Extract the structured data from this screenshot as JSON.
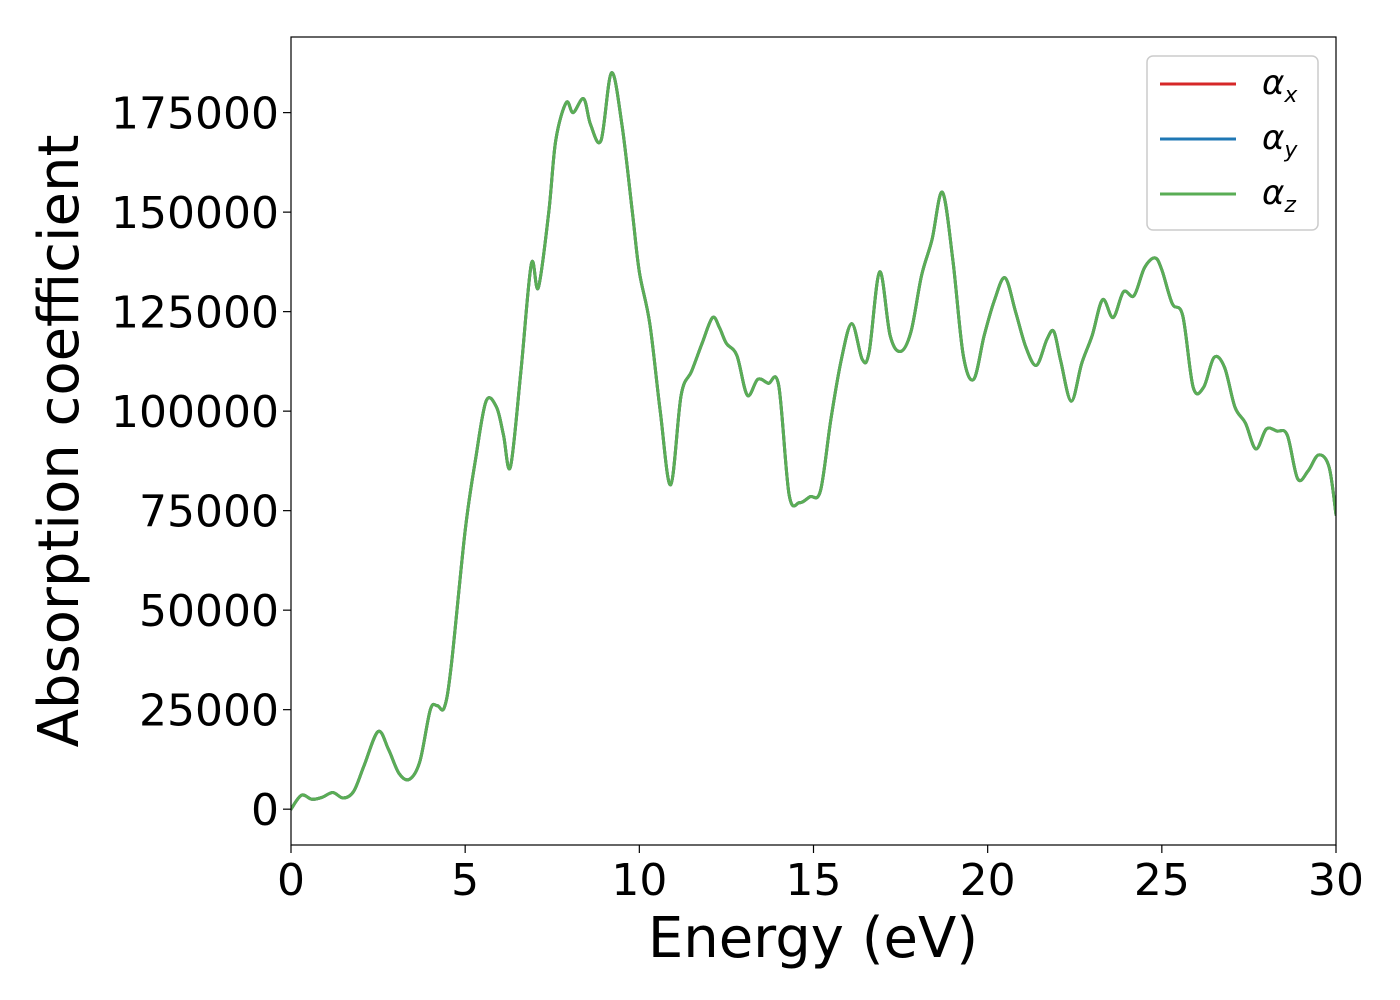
{
  "chart_data": {
    "type": "line",
    "title": "",
    "xlabel": "Energy (eV)",
    "ylabel": "Absorption coefficient",
    "xlim": [
      0,
      30
    ],
    "ylim": [
      -9000,
      194000
    ],
    "xticks": [
      0,
      5,
      10,
      15,
      20,
      25,
      30
    ],
    "xtick_labels": [
      "0",
      "5",
      "10",
      "15",
      "20",
      "25",
      "30"
    ],
    "yticks": [
      0,
      25000,
      50000,
      75000,
      100000,
      125000,
      150000,
      175000
    ],
    "ytick_labels": [
      "0",
      "25000",
      "50000",
      "75000",
      "100000",
      "125000",
      "150000",
      "175000"
    ],
    "grid": false,
    "legend_position": "top-right",
    "x": [
      0,
      0.3,
      0.6,
      0.9,
      1.2,
      1.5,
      1.8,
      2.1,
      2.5,
      2.8,
      3.1,
      3.4,
      3.7,
      4.0,
      4.2,
      4.4,
      4.6,
      5.0,
      5.3,
      5.6,
      5.9,
      6.1,
      6.3,
      6.6,
      6.9,
      7.1,
      7.4,
      7.6,
      7.9,
      8.1,
      8.4,
      8.6,
      8.9,
      9.2,
      9.5,
      9.8,
      10.0,
      10.3,
      10.6,
      10.9,
      11.2,
      11.5,
      11.8,
      12.1,
      12.3,
      12.5,
      12.8,
      13.1,
      13.4,
      13.7,
      14.0,
      14.3,
      14.6,
      14.9,
      15.2,
      15.5,
      15.8,
      16.1,
      16.4,
      16.6,
      16.9,
      17.2,
      17.5,
      17.8,
      18.1,
      18.4,
      18.7,
      19.0,
      19.3,
      19.6,
      19.9,
      20.2,
      20.5,
      20.8,
      21.1,
      21.4,
      21.7,
      21.9,
      22.1,
      22.4,
      22.7,
      23.0,
      23.3,
      23.6,
      23.9,
      24.2,
      24.5,
      24.8,
      25.0,
      25.3,
      25.6,
      25.9,
      26.2,
      26.5,
      26.8,
      27.1,
      27.4,
      27.7,
      28.0,
      28.3,
      28.6,
      28.9,
      29.2,
      29.5,
      29.8,
      30.0
    ],
    "series": [
      {
        "name": "α_x",
        "color": "#d62728",
        "values": [
          0,
          3500,
          2500,
          3000,
          4200,
          2800,
          4500,
          11000,
          19500,
          15000,
          9000,
          7500,
          12000,
          25000,
          26000,
          25500,
          36000,
          70000,
          88000,
          102500,
          101000,
          94000,
          86000,
          110000,
          137000,
          131000,
          150000,
          168000,
          177500,
          175000,
          178500,
          172000,
          168000,
          185000,
          172000,
          150000,
          135000,
          122000,
          100000,
          81500,
          104000,
          110000,
          117000,
          123500,
          121000,
          117000,
          114000,
          104000,
          108000,
          107000,
          106500,
          79000,
          77000,
          78500,
          80000,
          98000,
          113000,
          122000,
          113000,
          115000,
          135000,
          119000,
          115000,
          120000,
          134000,
          143000,
          155000,
          138000,
          114000,
          108000,
          119000,
          128000,
          133500,
          125000,
          116000,
          111500,
          118000,
          120000,
          112500,
          102500,
          112000,
          119000,
          128000,
          123500,
          130000,
          129000,
          136000,
          138500,
          135500,
          127000,
          124000,
          106000,
          106000,
          113500,
          111000,
          101000,
          97000,
          90500,
          95500,
          95000,
          94000,
          83000,
          85000,
          89000,
          86000,
          74000
        ]
      },
      {
        "name": "α_y",
        "color": "#1f77b4",
        "values": [
          0,
          3500,
          2500,
          3000,
          4200,
          2800,
          4500,
          11000,
          19500,
          15000,
          9000,
          7500,
          12000,
          25000,
          26000,
          25500,
          36000,
          70000,
          88000,
          102500,
          101000,
          94000,
          86000,
          110000,
          137000,
          131000,
          150000,
          168000,
          177500,
          175000,
          178500,
          172000,
          168000,
          185000,
          172000,
          150000,
          135000,
          122000,
          100000,
          81500,
          104000,
          110000,
          117000,
          123500,
          121000,
          117000,
          114000,
          104000,
          108000,
          107000,
          106500,
          79000,
          77000,
          78500,
          80000,
          98000,
          113000,
          122000,
          113000,
          115000,
          135000,
          119000,
          115000,
          120000,
          134000,
          143000,
          155000,
          138000,
          114000,
          108000,
          119000,
          128000,
          133500,
          125000,
          116000,
          111500,
          118000,
          120000,
          112500,
          102500,
          112000,
          119000,
          128000,
          123500,
          130000,
          129000,
          136000,
          138500,
          135500,
          127000,
          124000,
          106000,
          106000,
          113500,
          111000,
          101000,
          97000,
          90500,
          95500,
          95000,
          94000,
          83000,
          85000,
          89000,
          86000,
          74000
        ]
      },
      {
        "name": "α_z",
        "color": "#5aad55",
        "values": [
          0,
          3500,
          2500,
          3000,
          4200,
          2800,
          4500,
          11000,
          19500,
          15000,
          9000,
          7500,
          12000,
          25000,
          26000,
          25500,
          36000,
          70000,
          88000,
          102500,
          101000,
          94000,
          86000,
          110000,
          137000,
          131000,
          150000,
          168000,
          177500,
          175000,
          178500,
          172000,
          168000,
          185000,
          172000,
          150000,
          135000,
          122000,
          100000,
          81500,
          104000,
          110000,
          117000,
          123500,
          121000,
          117000,
          114000,
          104000,
          108000,
          107000,
          106500,
          79000,
          77000,
          78500,
          80000,
          98000,
          113000,
          122000,
          113000,
          115000,
          135000,
          119000,
          115000,
          120000,
          134000,
          143000,
          155000,
          138000,
          114000,
          108000,
          119000,
          128000,
          133500,
          125000,
          116000,
          111500,
          118000,
          120000,
          112500,
          102500,
          112000,
          119000,
          128000,
          123500,
          130000,
          129000,
          136000,
          138500,
          135500,
          127000,
          124000,
          106000,
          106000,
          113500,
          111000,
          101000,
          97000,
          90500,
          95500,
          95000,
          94000,
          83000,
          85000,
          89000,
          86000,
          74000
        ]
      }
    ],
    "legend": [
      {
        "symbol": "α",
        "sub": "x",
        "color": "#d62728"
      },
      {
        "symbol": "α",
        "sub": "y",
        "color": "#1f77b4"
      },
      {
        "symbol": "α",
        "sub": "z",
        "color": "#5aad55"
      }
    ]
  }
}
